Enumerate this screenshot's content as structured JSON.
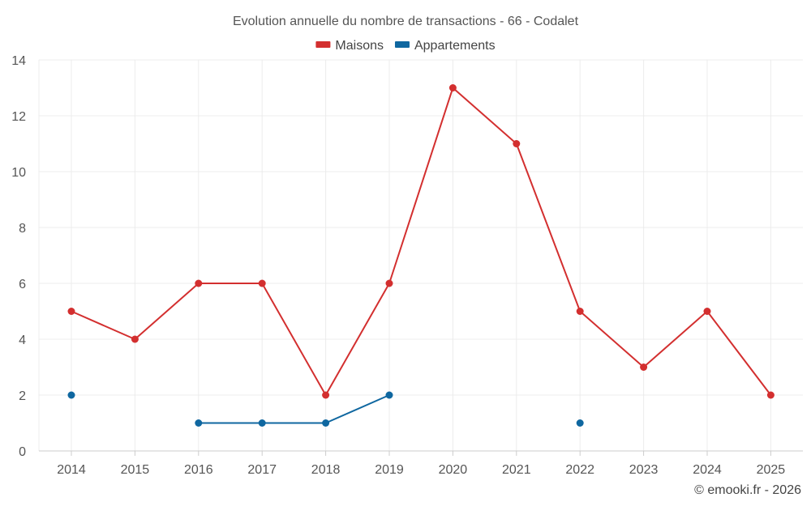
{
  "chart_data": {
    "type": "line",
    "title": "Evolution annuelle du nombre de transactions - 66 - Codalet",
    "xlabel": "",
    "ylabel": "",
    "categories": [
      "2014",
      "2015",
      "2016",
      "2017",
      "2018",
      "2019",
      "2020",
      "2021",
      "2022",
      "2023",
      "2024",
      "2025"
    ],
    "ylim": [
      0,
      14
    ],
    "yticks": [
      0,
      2,
      4,
      6,
      8,
      10,
      12,
      14
    ],
    "grid": true,
    "legend_position": "top-center",
    "series": [
      {
        "name": "Maisons",
        "color": "#d32f2f",
        "values": [
          5,
          4,
          6,
          6,
          2,
          6,
          13,
          11,
          5,
          3,
          5,
          2
        ]
      },
      {
        "name": "Appartements",
        "color": "#0f67a0",
        "values": [
          2,
          null,
          1,
          1,
          1,
          2,
          null,
          null,
          1,
          null,
          null,
          null
        ]
      }
    ],
    "credit": "© emooki.fr - 2026"
  }
}
